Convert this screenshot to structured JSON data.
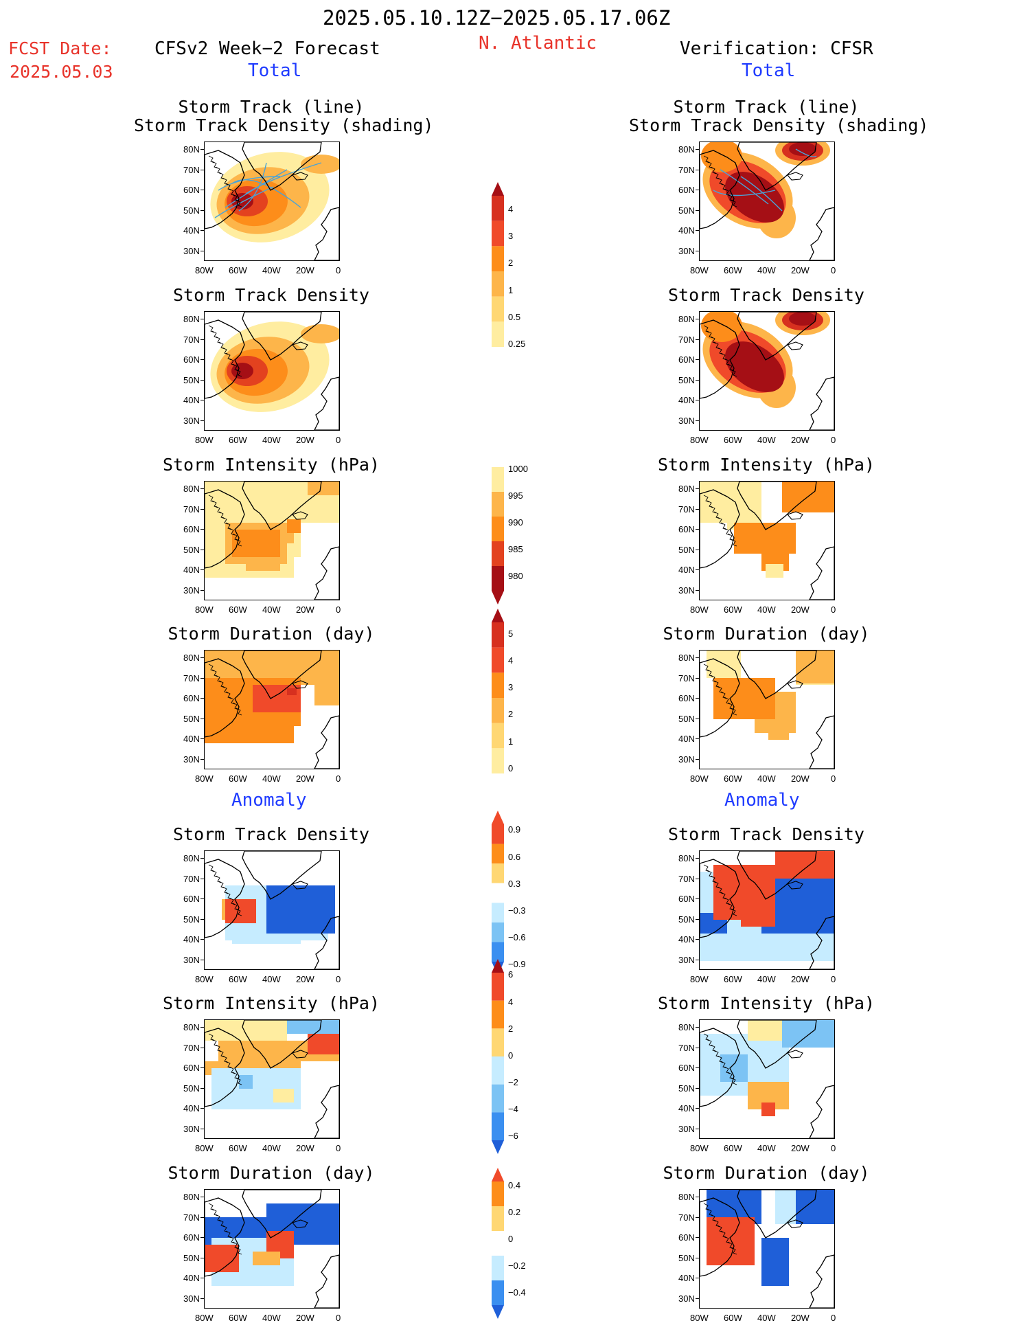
{
  "header": {
    "date_range": "2025.05.10.12Z−2025.05.17.06Z",
    "fcst_label": "FCST Date:",
    "fcst_date": "2025.05.03",
    "left_title": "CFSv2 Week−2 Forecast",
    "region": "N. Atlantic",
    "right_title": "Verification: CFSR",
    "total_left": "Total",
    "total_right": "Total",
    "anomaly_left": "Anomaly",
    "anomaly_right": "Anomaly"
  },
  "panel_titles": {
    "track_line": "Storm Track (line)",
    "track_density_shading": "Storm Track Density (shading)",
    "track_density": "Storm Track Density",
    "intensity": "Storm Intensity (hPa)",
    "duration": "Storm Duration (day)"
  },
  "axes": {
    "lat_ticks": [
      "80N",
      "70N",
      "60N",
      "50N",
      "40N",
      "30N"
    ],
    "lon_ticks": [
      "80W",
      "60W",
      "40W",
      "20W",
      "0"
    ]
  },
  "colorbars": {
    "density": [
      "4",
      "3",
      "2",
      "1",
      "0.5",
      "0.25"
    ],
    "intensity": [
      "1000",
      "995",
      "990",
      "985",
      "980"
    ],
    "duration": [
      "5",
      "4",
      "3",
      "2",
      "1",
      "0"
    ],
    "density_anom": [
      "0.9",
      "0.6",
      "0.3",
      "−0.3",
      "−0.6",
      "−0.9"
    ],
    "intensity_anom": [
      "6",
      "4",
      "2",
      "0",
      "−2",
      "−4",
      "−6"
    ],
    "duration_anom": [
      "0.4",
      "0.2",
      "0",
      "−0.2",
      "−0.4"
    ]
  },
  "colors": {
    "dark_red": "#a50f15",
    "red": "#d7301f",
    "orange_red": "#f04a2a",
    "orange": "#fd8d1a",
    "light_orange": "#fdb54a",
    "pale_yellow": "#ffeda0",
    "pale_blue": "#c6ecff",
    "light_blue": "#7cc3f4",
    "mid_blue": "#3a8ff0",
    "dark_blue": "#1f5fd8",
    "track_line": "#4aa3d8"
  }
}
